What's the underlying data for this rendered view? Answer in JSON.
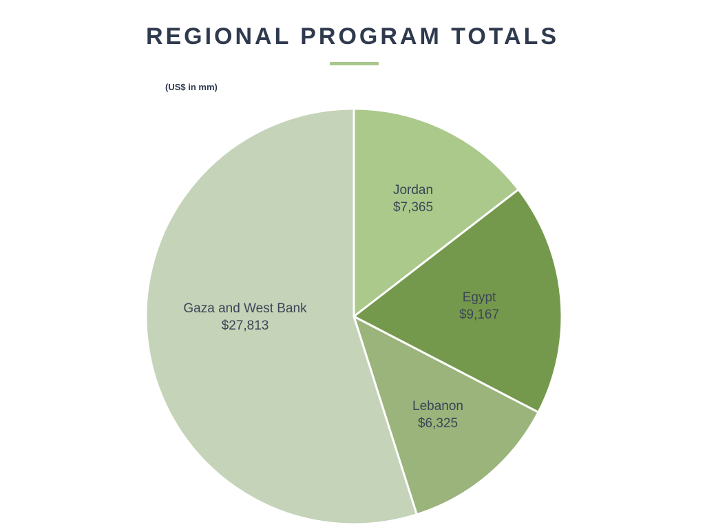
{
  "chart_data": {
    "type": "pie",
    "title": "REGIONAL PROGRAM TOTALS",
    "units_note": "(US$ in mm)",
    "slices": [
      {
        "name": "Jordan",
        "value": 7365,
        "value_label": "$7,365",
        "color": "#aac98b"
      },
      {
        "name": "Egypt",
        "value": 9167,
        "value_label": "$9,167",
        "color": "#75994c"
      },
      {
        "name": "Lebanon",
        "value": 6325,
        "value_label": "$6,325",
        "color": "#9ab47b"
      },
      {
        "name": "Gaza and West Bank",
        "value": 27813,
        "value_label": "$27,813",
        "color": "#c5d3b8"
      }
    ],
    "accent_color": "#a9c78c",
    "title_color": "#2f3a4f"
  }
}
